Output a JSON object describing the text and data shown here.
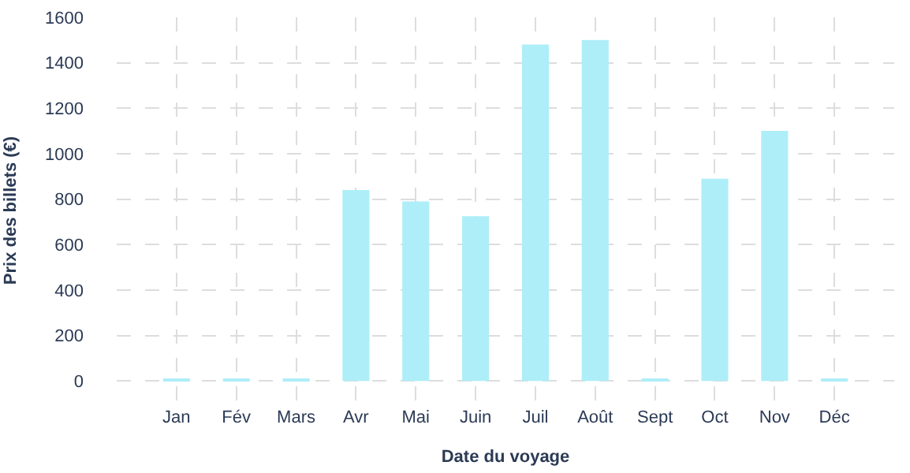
{
  "chart_data": {
    "type": "bar",
    "xlabel": "Date du voyage",
    "ylabel": "Prix des billets (€)",
    "categories": [
      "Jan",
      "Fév",
      "Mars",
      "Avr",
      "Mai",
      "Juin",
      "Juil",
      "Août",
      "Sept",
      "Oct",
      "Nov",
      "Déc"
    ],
    "values": [
      10,
      10,
      10,
      840,
      790,
      725,
      1480,
      1500,
      10,
      890,
      1100,
      10
    ],
    "color": "#aeeef8",
    "ylim": [
      -100,
      1600
    ],
    "yticks": [
      0,
      200,
      400,
      600,
      800,
      1000,
      1200,
      1400,
      1600
    ],
    "grid": true
  }
}
